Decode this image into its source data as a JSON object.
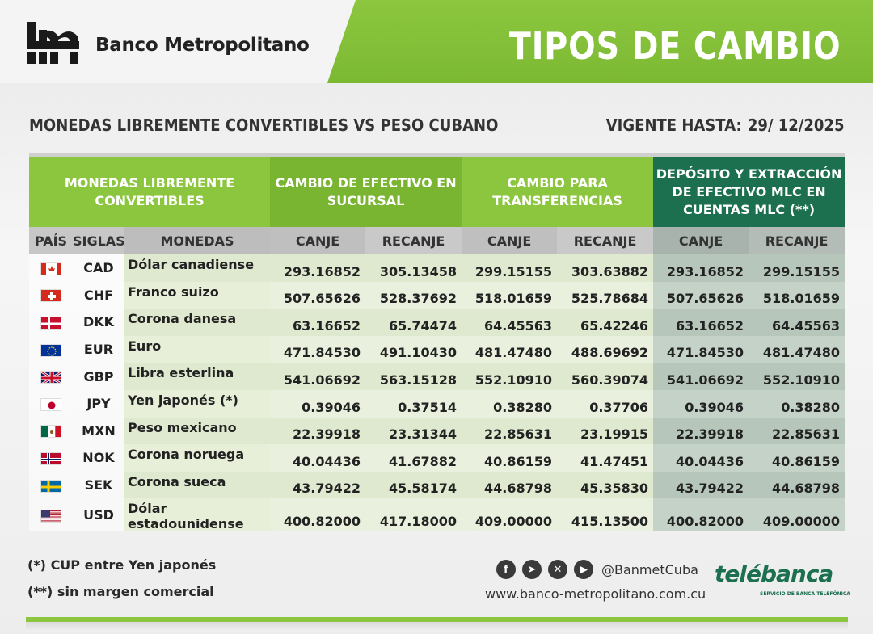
{
  "header": {
    "bank_name": "Banco Metropolitano",
    "title": "TIPOS DE CAMBIO"
  },
  "subheader": {
    "subtitle": "MONEDAS LIBREMENTE CONVERTIBLES VS PESO CUBANO",
    "valid_label": "VIGENTE HASTA:",
    "valid_date": "29/ 12/2025"
  },
  "table": {
    "group_headers": {
      "g1": "MONEDAS LIBREMENTE CONVERTIBLES",
      "g2": "CAMBIO DE EFECTIVO EN SUCURSAL",
      "g3": "CAMBIO PARA TRANSFERENCIAS",
      "g4": "DEPÓSITO Y EXTRACCIÓN DE EFECTIVO MLC EN CUENTAS MLC (**)"
    },
    "columns": {
      "pais": "PAÍS",
      "siglas": "SIGLAS",
      "monedas": "MONEDAS",
      "canje": "CANJE",
      "recanje": "RECANJE"
    },
    "rows": [
      {
        "flag": "canada-flag-icon",
        "code": "CAD",
        "name": "Dólar canadiense",
        "v": [
          "293.16852",
          "305.13458",
          "299.15155",
          "303.63882",
          "293.16852",
          "299.15155"
        ]
      },
      {
        "flag": "switzerland-flag-icon",
        "code": "CHF",
        "name": "Franco suizo",
        "v": [
          "507.65626",
          "528.37692",
          "518.01659",
          "525.78684",
          "507.65626",
          "518.01659"
        ]
      },
      {
        "flag": "denmark-flag-icon",
        "code": "DKK",
        "name": "Corona danesa",
        "v": [
          "63.16652",
          "65.74474",
          "64.45563",
          "65.42246",
          "63.16652",
          "64.45563"
        ]
      },
      {
        "flag": "eu-flag-icon",
        "code": "EUR",
        "name": "Euro",
        "v": [
          "471.84530",
          "491.10430",
          "481.47480",
          "488.69692",
          "471.84530",
          "481.47480"
        ]
      },
      {
        "flag": "uk-flag-icon",
        "code": "GBP",
        "name": "Libra esterlina",
        "v": [
          "541.06692",
          "563.15128",
          "552.10910",
          "560.39074",
          "541.06692",
          "552.10910"
        ]
      },
      {
        "flag": "japan-flag-icon",
        "code": "JPY",
        "name": "Yen japonés (*)",
        "v": [
          "0.39046",
          "0.37514",
          "0.38280",
          "0.37706",
          "0.39046",
          "0.38280"
        ]
      },
      {
        "flag": "mexico-flag-icon",
        "code": "MXN",
        "name": "Peso mexicano",
        "v": [
          "22.39918",
          "23.31344",
          "22.85631",
          "23.19915",
          "22.39918",
          "22.85631"
        ]
      },
      {
        "flag": "norway-flag-icon",
        "code": "NOK",
        "name": "Corona noruega",
        "v": [
          "40.04436",
          "41.67882",
          "40.86159",
          "41.47451",
          "40.04436",
          "40.86159"
        ]
      },
      {
        "flag": "sweden-flag-icon",
        "code": "SEK",
        "name": "Corona sueca",
        "v": [
          "43.79422",
          "45.58174",
          "44.68798",
          "45.35830",
          "43.79422",
          "44.68798"
        ]
      },
      {
        "flag": "usa-flag-icon",
        "code": "USD",
        "name": "Dólar estadounidense",
        "v": [
          "400.82000",
          "417.18000",
          "409.00000",
          "415.13500",
          "400.82000",
          "409.00000"
        ]
      }
    ]
  },
  "notes": {
    "note1": "(*) CUP entre Yen japonés",
    "note2": "(**) sin margen comercial"
  },
  "footer": {
    "social_icons": [
      "facebook-icon",
      "telegram-icon",
      "x-icon",
      "youtube-icon"
    ],
    "handle": "@BanmetCuba",
    "website": "www.banco-metropolitano.com.cu",
    "brand": "telébanca",
    "brand_tagline": "SERVICIO DE BANCA TELEFÓNICA"
  },
  "colors": {
    "brand_green": "#8cc63f",
    "dark_green": "#1c6f4f"
  }
}
